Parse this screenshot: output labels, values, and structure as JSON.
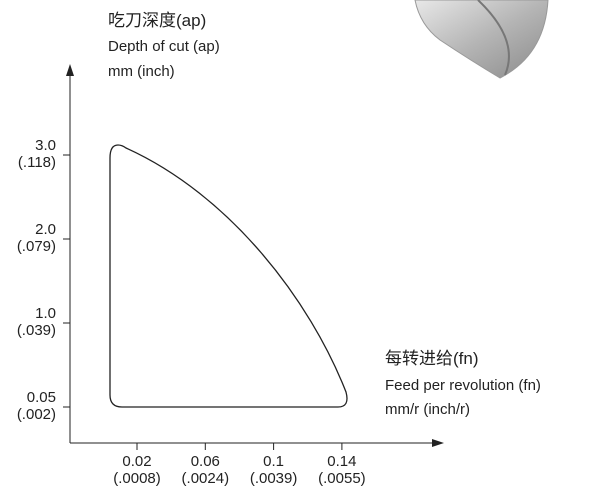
{
  "y_axis": {
    "title": "吃刀深度(ap)",
    "subtitle": "Depth of cut (ap)",
    "unit": "mm (inch)",
    "ticks": [
      {
        "mm": "0.05",
        "inch": "(.002)"
      },
      {
        "mm": "1.0",
        "inch": "(.039)"
      },
      {
        "mm": "2.0",
        "inch": "(.079)"
      },
      {
        "mm": "3.0",
        "inch": "(.118)"
      }
    ]
  },
  "x_axis": {
    "title": "每转进给(fn)",
    "subtitle": "Feed per revolution (fn)",
    "unit": "mm/r (inch/r)",
    "ticks": [
      {
        "mm": "0.02",
        "inch": "(.0008)"
      },
      {
        "mm": "0.06",
        "inch": "(.0024)"
      },
      {
        "mm": "0.1",
        "inch": "(.0039)"
      },
      {
        "mm": "0.14",
        "inch": "(.0055)"
      }
    ]
  }
}
